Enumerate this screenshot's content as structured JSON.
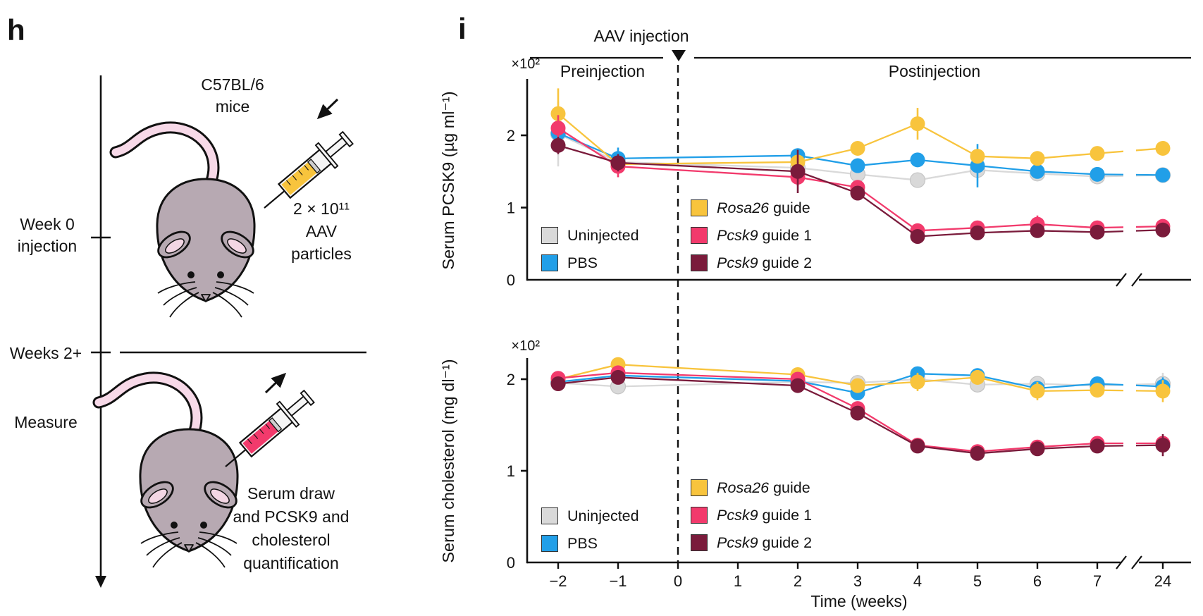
{
  "panel_h": {
    "label": "h",
    "mice_lines": [
      "C57BL/6",
      "mice"
    ],
    "week0_lines": [
      "Week 0",
      "injection"
    ],
    "weeks2_label": "Weeks 2+",
    "measure_label": "Measure",
    "injection_lines": [
      "2 × 10¹¹",
      "AAV",
      "particles"
    ],
    "measure_lines": [
      "Serum draw",
      "and PCSK9 and",
      "cholesterol",
      "quantification"
    ],
    "mouse_color": "#B7A9B2",
    "mouse_pink": "#F7D9E8",
    "syringe1_liquid": "#F8C43D",
    "syringe2_liquid": "#F23A6C"
  },
  "panel_i": {
    "label": "i"
  },
  "legend": {
    "entries": [
      {
        "key": "uninjected",
        "gene": "",
        "rest": "Uninjected",
        "color": "#D9D9D9"
      },
      {
        "key": "pbs",
        "gene": "",
        "rest": "PBS",
        "color": "#219FE8"
      },
      {
        "key": "rosa26",
        "gene": "Rosa26",
        "rest": " guide",
        "color": "#F8C43D"
      },
      {
        "key": "pcsk9_g1",
        "gene": "Pcsk9",
        "rest": " guide 1",
        "color": "#F23A6C"
      },
      {
        "key": "pcsk9_g2",
        "gene": "Pcsk9",
        "rest": " guide 2",
        "color": "#7A1B3B"
      }
    ]
  },
  "chart_data": [
    {
      "type": "line",
      "name": "serum-pcsk9",
      "ylabel": "Serum PCSK9 (µg ml⁻¹)",
      "y_scale_label": "×10²",
      "xlabel": "Time (weeks)",
      "ylim": [
        0,
        2.78
      ],
      "yticks": [
        0,
        1,
        2
      ],
      "ytick_labels": [
        "0",
        "1",
        "2"
      ],
      "x_weeks": [
        -2,
        -1,
        2,
        3,
        4,
        5,
        6,
        7,
        24
      ],
      "x_axis_break_between": [
        7,
        24
      ],
      "annotations": {
        "header": "AAV injection",
        "pre": "Preinjection",
        "post": "Postinjection",
        "injection_week": 0
      },
      "series": [
        {
          "key": "uninjected",
          "name": "Uninjected",
          "color": "#D9D9D9",
          "values": [
            2.02,
            1.63,
            1.55,
            1.46,
            1.38,
            1.52,
            1.47,
            1.43,
            1.45
          ],
          "err": [
            0.45,
            0.1,
            0.08,
            0.06,
            0.06,
            0.08,
            0.06,
            0.06,
            0.06
          ]
        },
        {
          "key": "pbs",
          "name": "PBS",
          "color": "#219FE8",
          "values": [
            2.03,
            1.68,
            1.72,
            1.58,
            1.66,
            1.58,
            1.5,
            1.46,
            1.45
          ],
          "err": [
            0.12,
            0.15,
            0.1,
            0.06,
            0.08,
            0.3,
            0.06,
            0.06,
            0.06
          ]
        },
        {
          "key": "rosa26",
          "name": "Rosa26 guide",
          "color": "#F8C43D",
          "values": [
            2.3,
            1.6,
            1.63,
            1.82,
            2.16,
            1.71,
            1.68,
            1.75,
            1.82
          ],
          "err": [
            0.35,
            0.1,
            0.08,
            0.08,
            0.22,
            0.08,
            0.06,
            0.06,
            0.06
          ]
        },
        {
          "key": "pcsk9_g1",
          "name": "Pcsk9 guide 1",
          "color": "#F23A6C",
          "values": [
            2.1,
            1.57,
            1.42,
            1.28,
            0.68,
            0.72,
            0.77,
            0.72,
            0.74
          ],
          "err": [
            0.18,
            0.15,
            0.12,
            0.08,
            0.1,
            0.08,
            0.12,
            0.1,
            0.08
          ]
        },
        {
          "key": "pcsk9_g2",
          "name": "Pcsk9 guide 2",
          "color": "#7A1B3B",
          "values": [
            1.86,
            1.62,
            1.5,
            1.2,
            0.6,
            0.65,
            0.68,
            0.66,
            0.69
          ],
          "err": [
            0.12,
            0.12,
            0.3,
            0.08,
            0.08,
            0.08,
            0.06,
            0.06,
            0.06
          ]
        }
      ]
    },
    {
      "type": "line",
      "name": "serum-cholesterol",
      "ylabel": "Serum cholesterol (mg dl⁻¹)",
      "y_scale_label": "×10²",
      "xlabel": "Time (weeks)",
      "ylim": [
        0,
        2.23
      ],
      "yticks": [
        0,
        1,
        2
      ],
      "ytick_labels": [
        "0",
        "1",
        "2"
      ],
      "x_weeks": [
        -2,
        -1,
        2,
        3,
        4,
        5,
        6,
        7,
        24
      ],
      "x_tick_positions": [
        -2,
        -1,
        0,
        1,
        2,
        3,
        4,
        5,
        6,
        7,
        24
      ],
      "x_tick_labels": [
        "−2",
        "−1",
        "0",
        "1",
        "2",
        "3",
        "4",
        "5",
        "6",
        "7",
        "24"
      ],
      "x_axis_break_between": [
        7,
        24
      ],
      "series": [
        {
          "key": "uninjected",
          "name": "Uninjected",
          "color": "#D9D9D9",
          "values": [
            1.96,
            1.92,
            1.97,
            1.96,
            2.0,
            1.94,
            1.95,
            1.93,
            1.95
          ],
          "err": [
            0.05,
            0.05,
            0.05,
            0.05,
            0.06,
            0.06,
            0.08,
            0.06,
            0.12
          ]
        },
        {
          "key": "pbs",
          "name": "PBS",
          "color": "#219FE8",
          "values": [
            1.97,
            2.04,
            1.98,
            1.85,
            2.06,
            2.04,
            1.9,
            1.95,
            1.92
          ],
          "err": [
            0.05,
            0.05,
            0.05,
            0.05,
            0.06,
            0.05,
            0.05,
            0.05,
            0.1
          ]
        },
        {
          "key": "rosa26",
          "name": "Rosa26 guide",
          "color": "#F8C43D",
          "values": [
            2.0,
            2.16,
            2.05,
            1.93,
            1.97,
            2.02,
            1.87,
            1.88,
            1.87
          ],
          "err": [
            0.06,
            0.06,
            0.06,
            0.06,
            0.1,
            0.08,
            0.1,
            0.08,
            0.12
          ]
        },
        {
          "key": "pcsk9_g1",
          "name": "Pcsk9 guide 1",
          "color": "#F23A6C",
          "values": [
            2.01,
            2.07,
            2.0,
            1.68,
            1.28,
            1.21,
            1.26,
            1.3,
            1.3
          ],
          "err": [
            0.06,
            0.06,
            0.06,
            0.06,
            0.06,
            0.05,
            0.05,
            0.06,
            0.08
          ]
        },
        {
          "key": "pcsk9_g2",
          "name": "Pcsk9 guide 2",
          "color": "#7A1B3B",
          "values": [
            1.95,
            2.02,
            1.93,
            1.63,
            1.27,
            1.19,
            1.24,
            1.27,
            1.28
          ],
          "err": [
            0.05,
            0.05,
            0.05,
            0.06,
            0.06,
            0.05,
            0.05,
            0.06,
            0.12
          ]
        }
      ]
    }
  ]
}
